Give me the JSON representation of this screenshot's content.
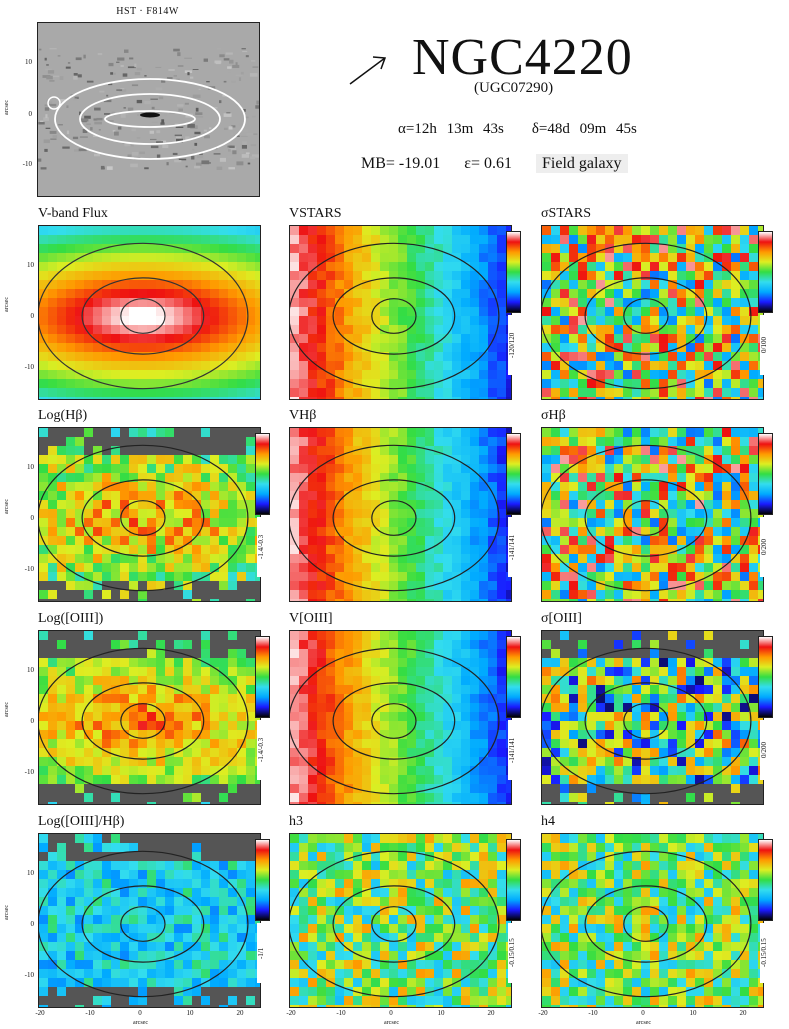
{
  "header": {
    "hst_label": "HST · F814W",
    "galaxy_name": "NGC4220",
    "alt_name": "(UGC07290)",
    "ra": "α=12h 13m 43s",
    "dec": "δ=48d 09m 45s",
    "mb": "MB= -19.01",
    "ellipticity": "ε= 0.61",
    "environment": "Field galaxy",
    "hst_yticks": [
      "10",
      "0",
      "-10"
    ],
    "hst_ylabel": "arcsec"
  },
  "panels": [
    {
      "title": "V-band Flux",
      "cmap": "flux",
      "cbar": false,
      "range": ""
    },
    {
      "title": "VSTARS",
      "cmap": "velocity",
      "cbar": true,
      "range": "-120/120"
    },
    {
      "title": "σSTARS",
      "cmap": "dispersion",
      "cbar": true,
      "range": "0/100"
    },
    {
      "title": "Log(Hβ)",
      "cmap": "hb",
      "cbar": true,
      "range": "-1.4/-0.3"
    },
    {
      "title": "VHβ",
      "cmap": "velocity",
      "cbar": true,
      "range": "-141/141"
    },
    {
      "title": "σHβ",
      "cmap": "dispersion",
      "cbar": true,
      "range": "0/200"
    },
    {
      "title": "Log([OIII])",
      "cmap": "oiii",
      "cbar": true,
      "range": "-1.4/-0.3"
    },
    {
      "title": "V[OIII]",
      "cmap": "velocity",
      "cbar": true,
      "range": "-141/141"
    },
    {
      "title": "σ[OIII]",
      "cmap": "dispersion_dark",
      "cbar": true,
      "range": "0/200"
    },
    {
      "title": "Log([OIII]/Hβ)",
      "cmap": "ratio",
      "cbar": true,
      "range": "-1/1"
    },
    {
      "title": "h3",
      "cmap": "h3",
      "cbar": true,
      "range": "-0.15/0.15"
    },
    {
      "title": "h4",
      "cmap": "h4",
      "cbar": true,
      "range": "-0.15/0.15"
    }
  ],
  "axes": {
    "yticks": [
      "10",
      "0",
      "-10"
    ],
    "xticks": [
      "-20",
      "-10",
      "0",
      "10",
      "20"
    ],
    "xlabel": "arcsec",
    "ylabel": "arcsec"
  },
  "colors": {
    "rainbow": [
      "#000000",
      "#1a1aff",
      "#00aaff",
      "#33ddee",
      "#33dd44",
      "#ddee22",
      "#ff9900",
      "#ee1111",
      "#ffffff"
    ],
    "masked": "#555555"
  }
}
